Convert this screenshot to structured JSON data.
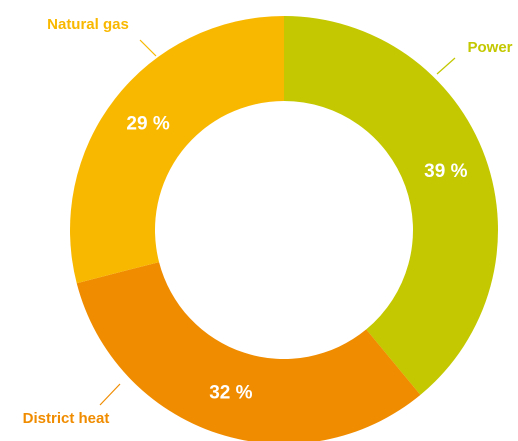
{
  "chart_data": {
    "type": "pie",
    "donut": true,
    "categories": [
      "Power",
      "District heat",
      "Natural gas"
    ],
    "values": [
      39,
      32,
      29
    ],
    "value_labels": [
      "39 %",
      "32 %",
      "29 %"
    ],
    "colors": [
      "#c3c800",
      "#f08c00",
      "#f9b800"
    ]
  }
}
